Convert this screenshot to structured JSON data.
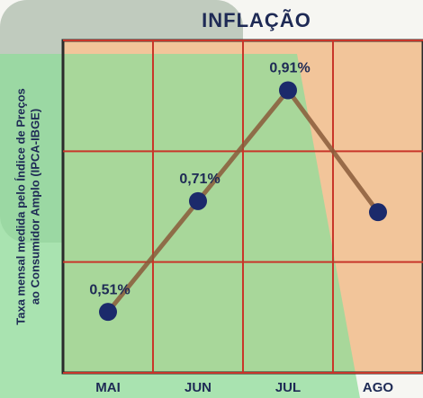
{
  "chart_data": {
    "type": "line",
    "title": "INFLAÇÃO",
    "y_label": [
      "Taxa mensal medida pelo Índice de Preços",
      "ao Consumidor Amplo (IPCA-IBGE)"
    ],
    "categories": [
      "MAI",
      "JUN",
      "JUL",
      "AGO"
    ],
    "series": [
      {
        "name": "IPCA",
        "color": "#1b2a6b",
        "line_color": "#8a5a3a",
        "values": [
          0.51,
          0.71,
          0.91,
          0.69
        ],
        "value_labels": [
          "0,51%",
          "0,71%",
          "0,91%",
          null
        ]
      }
    ],
    "ylim": [
      0.4,
      1.0
    ],
    "yticks": [
      0.4,
      0.6,
      0.8,
      1.0
    ],
    "grid": true,
    "grid_color": "#c8362a"
  }
}
